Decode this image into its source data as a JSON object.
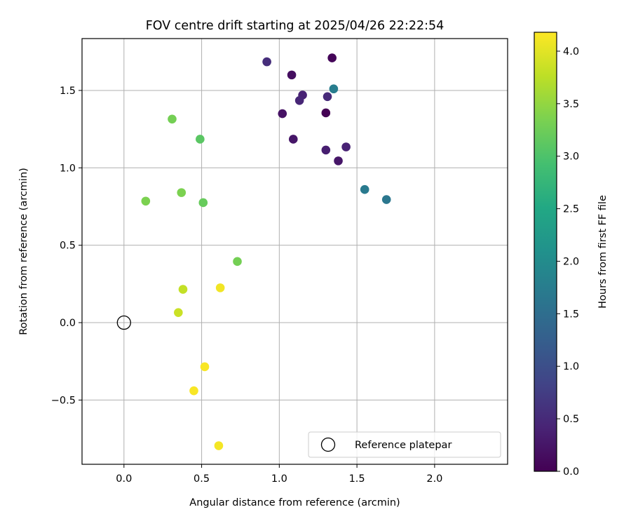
{
  "chart_data": {
    "type": "scatter",
    "title": "FOV centre drift starting at 2025/04/26 22:22:54",
    "xlabel": "Angular distance from reference (arcmin)",
    "ylabel": "Rotation from reference (arcmin)",
    "xlim": [
      -0.27,
      2.47
    ],
    "ylim": [
      -0.915,
      1.835
    ],
    "xticks": [
      0.0,
      0.5,
      1.0,
      1.5,
      2.0
    ],
    "xtick_labels": [
      "0.0",
      "0.5",
      "1.0",
      "1.5",
      "2.0"
    ],
    "yticks": [
      -0.5,
      0.0,
      0.5,
      1.0,
      1.5
    ],
    "ytick_labels": [
      "−0.5",
      "0.0",
      "0.5",
      "1.0",
      "1.5"
    ],
    "grid": true,
    "colormap": "viridis",
    "colorbar": {
      "label": "Hours from first FF file",
      "range": [
        0.0,
        4.18
      ],
      "ticks": [
        0.0,
        0.5,
        1.0,
        1.5,
        2.0,
        2.5,
        3.0,
        3.5,
        4.0
      ],
      "tick_labels": [
        "0.0",
        "0.5",
        "1.0",
        "1.5",
        "2.0",
        "2.5",
        "3.0",
        "3.5",
        "4.0"
      ]
    },
    "reference": {
      "x": 0.0,
      "y": 0.0,
      "label": "Reference platepar",
      "marker": "open-circle"
    },
    "legend_position": "lower-right",
    "points": [
      {
        "x": 1.3,
        "y": 1.355,
        "hours": 0.0
      },
      {
        "x": 1.34,
        "y": 1.71,
        "hours": 0.05
      },
      {
        "x": 1.08,
        "y": 1.6,
        "hours": 0.15
      },
      {
        "x": 1.02,
        "y": 1.35,
        "hours": 0.2
      },
      {
        "x": 1.09,
        "y": 1.185,
        "hours": 0.25
      },
      {
        "x": 1.38,
        "y": 1.045,
        "hours": 0.25
      },
      {
        "x": 1.3,
        "y": 1.115,
        "hours": 0.35
      },
      {
        "x": 1.43,
        "y": 1.135,
        "hours": 0.4
      },
      {
        "x": 1.15,
        "y": 1.47,
        "hours": 0.4
      },
      {
        "x": 1.13,
        "y": 1.435,
        "hours": 0.45
      },
      {
        "x": 1.31,
        "y": 1.46,
        "hours": 0.5
      },
      {
        "x": 0.92,
        "y": 1.685,
        "hours": 0.55
      },
      {
        "x": 1.69,
        "y": 0.795,
        "hours": 1.65
      },
      {
        "x": 1.55,
        "y": 0.86,
        "hours": 1.7
      },
      {
        "x": 1.35,
        "y": 1.51,
        "hours": 1.75
      },
      {
        "x": 0.49,
        "y": 1.185,
        "hours": 3.1
      },
      {
        "x": 0.51,
        "y": 0.775,
        "hours": 3.2
      },
      {
        "x": 0.31,
        "y": 1.315,
        "hours": 3.3
      },
      {
        "x": 0.37,
        "y": 0.84,
        "hours": 3.35
      },
      {
        "x": 0.14,
        "y": 0.785,
        "hours": 3.35
      },
      {
        "x": 0.73,
        "y": 0.395,
        "hours": 3.3
      },
      {
        "x": 0.38,
        "y": 0.215,
        "hours": 3.8
      },
      {
        "x": 0.35,
        "y": 0.065,
        "hours": 3.85
      },
      {
        "x": 0.62,
        "y": 0.225,
        "hours": 4.1
      },
      {
        "x": 0.52,
        "y": -0.285,
        "hours": 4.15
      },
      {
        "x": 0.45,
        "y": -0.44,
        "hours": 4.15
      },
      {
        "x": 0.61,
        "y": -0.795,
        "hours": 4.12
      }
    ]
  }
}
